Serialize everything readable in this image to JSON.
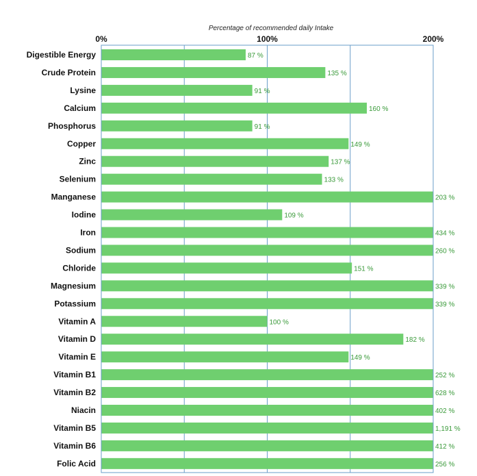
{
  "chart_data": {
    "type": "bar",
    "orientation": "horizontal",
    "title": "",
    "xlabel": "Percentage of recommended daily Intake",
    "ylabel": "",
    "xlim": [
      0,
      200
    ],
    "xticks": [
      0,
      100,
      200
    ],
    "xtick_labels": [
      "0%",
      "100%",
      "200%"
    ],
    "gridlines": [
      50,
      100,
      150
    ],
    "grid": true,
    "bars_clipped_at_axis_max": true,
    "categories": [
      "Digestible Energy",
      "Crude Protein",
      "Lysine",
      "Calcium",
      "Phosphorus",
      "Copper",
      "Zinc",
      "Selenium",
      "Manganese",
      "Iodine",
      "Iron",
      "Sodium",
      "Chloride",
      "Magnesium",
      "Potassium",
      "Vitamin A",
      "Vitamin D",
      "Vitamin E",
      "Vitamin B1",
      "Vitamin B2",
      "Niacin",
      "Vitamin B5",
      "Vitamin B6",
      "Folic Acid"
    ],
    "values": [
      87,
      135,
      91,
      160,
      91,
      149,
      137,
      133,
      203,
      109,
      434,
      260,
      151,
      339,
      339,
      100,
      182,
      149,
      252,
      628,
      402,
      1191,
      412,
      256
    ],
    "value_labels": [
      "87 %",
      "135 %",
      "91 %",
      "160 %",
      "91 %",
      "149 %",
      "137 %",
      "133 %",
      "203 %",
      "109 %",
      "434 %",
      "260 %",
      "151 %",
      "339 %",
      "339 %",
      "100 %",
      "182 %",
      "149 %",
      "252 %",
      "628 %",
      "402 %",
      "1,191 %",
      "412 %",
      "256 %"
    ],
    "colors": {
      "bar": "#6fcf6f",
      "value_text": "#3a9a3a",
      "grid": "#6a9ec9",
      "frame": "#6a9ec9",
      "text": "#111111"
    }
  }
}
